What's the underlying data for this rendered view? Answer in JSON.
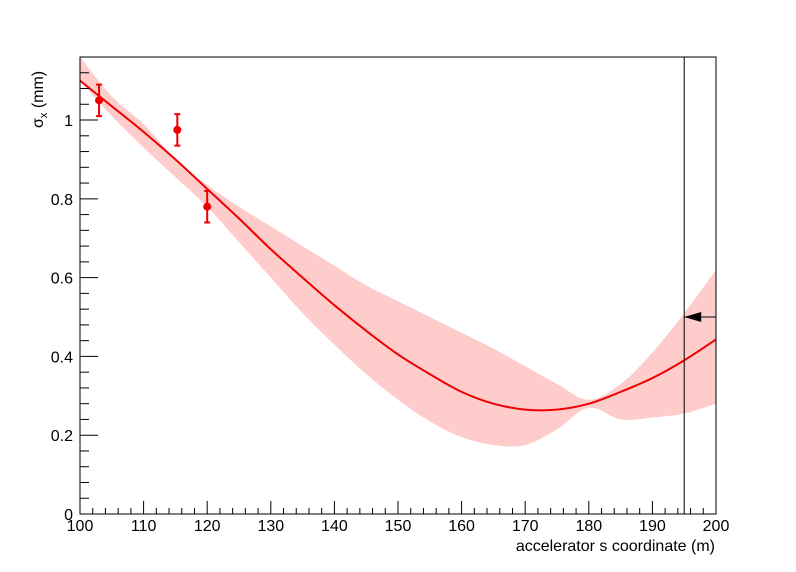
{
  "chart_data": {
    "type": "line",
    "title": "",
    "xlabel": "accelerator s coordinate (m)",
    "ylabel_main": "σ",
    "ylabel_sub": "x",
    "ylabel_unit": "(mm)",
    "xlim": [
      100,
      200
    ],
    "ylim": [
      0,
      1.16
    ],
    "x_ticks": [
      100,
      110,
      120,
      130,
      140,
      150,
      160,
      170,
      180,
      190,
      200
    ],
    "y_ticks": [
      0,
      0.2,
      0.4,
      0.6,
      0.8,
      1
    ],
    "y_tick_labels": [
      "0",
      "0.2",
      "0.4",
      "0.6",
      "0.8",
      "1"
    ],
    "grid": false,
    "colors": {
      "fit": "#ee0000",
      "band": "#ffcccc",
      "points": "#ee0000",
      "marker": "#000000"
    },
    "fit_line": {
      "x": [
        100,
        105,
        110,
        115,
        120,
        125,
        130,
        135,
        140,
        145,
        150,
        155,
        160,
        165,
        170,
        175,
        180,
        185,
        190,
        195,
        200
      ],
      "y": [
        1.1,
        1.035,
        0.97,
        0.9,
        0.825,
        0.75,
        0.672,
        0.6,
        0.53,
        0.465,
        0.405,
        0.355,
        0.31,
        0.28,
        0.265,
        0.265,
        0.28,
        0.31,
        0.345,
        0.39,
        0.443
      ]
    },
    "error_band": {
      "x": [
        100,
        105,
        110,
        115,
        120,
        125,
        130,
        135,
        140,
        145,
        150,
        155,
        160,
        165,
        170,
        175,
        180,
        185,
        190,
        195,
        200
      ],
      "upper": [
        1.16,
        1.06,
        0.99,
        0.9,
        0.835,
        0.78,
        0.73,
        0.68,
        0.63,
        0.58,
        0.54,
        0.5,
        0.46,
        0.42,
        0.375,
        0.33,
        0.29,
        0.33,
        0.41,
        0.51,
        0.62
      ],
      "lower": [
        1.1,
        1.01,
        0.93,
        0.855,
        0.78,
        0.69,
        0.6,
        0.51,
        0.43,
        0.355,
        0.29,
        0.235,
        0.195,
        0.175,
        0.175,
        0.215,
        0.27,
        0.24,
        0.245,
        0.255,
        0.28
      ]
    },
    "data_points": [
      {
        "x": 103,
        "y": 1.05,
        "yerr": 0.04
      },
      {
        "x": 115.3,
        "y": 0.975,
        "yerr": 0.04
      },
      {
        "x": 120,
        "y": 0.78,
        "yerr": 0.04
      }
    ],
    "marker_line": {
      "x": 195,
      "arrow_y": 0.5
    }
  }
}
